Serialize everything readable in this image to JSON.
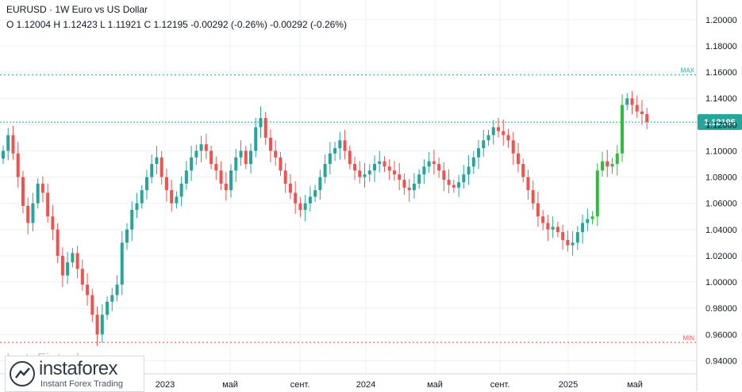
{
  "header": {
    "title": "EURUSD · 1W Euro vs US Dollar",
    "ohlc": "O 1.12004 H 1.12423 L 1.11921 C 1.12195 -0.00292 (-0.26%) -0.00292 (-0.26%)"
  },
  "watermark": "InstaFintech",
  "logo": {
    "name": "instaforex",
    "sub": "Instant Forex Trading"
  },
  "colors": {
    "up": "#26a69a",
    "down": "#ef5350",
    "upBright": "#2ebd3c",
    "maxLine": "#26a69a",
    "minLine": "#ef5350",
    "priceLine": "#26a69a",
    "grid": "#eef0f3"
  },
  "chart_data": {
    "type": "candlestick",
    "symbol": "EURUSD",
    "timeframe": "1W",
    "ylim": [
      0.93,
      1.215
    ],
    "yticks": [
      "0.94000",
      "0.96000",
      "0.98000",
      "1.00000",
      "1.02000",
      "1.04000",
      "1.06000",
      "1.08000",
      "1.10000",
      "1.12000",
      "1.14000",
      "1.16000",
      "1.18000",
      "1.20000"
    ],
    "xticks": [
      "2023",
      "май",
      "сент.",
      "2024",
      "май",
      "сент.",
      "2025",
      "май"
    ],
    "last_price": "1.12195",
    "max_label": "MAX",
    "max_value": 1.158,
    "min_label": "MIN",
    "min_value": 0.954,
    "closes": [
      1.1,
      1.112,
      1.098,
      1.08,
      1.058,
      1.045,
      1.06,
      1.075,
      1.068,
      1.05,
      1.04,
      1.02,
      1.005,
      1.015,
      1.022,
      1.01,
      0.998,
      0.99,
      0.975,
      0.96,
      0.975,
      0.985,
      0.99,
      0.998,
      1.03,
      1.04,
      1.055,
      1.06,
      1.07,
      1.08,
      1.09,
      1.095,
      1.08,
      1.07,
      1.06,
      1.065,
      1.075,
      1.085,
      1.095,
      1.1,
      1.105,
      1.1,
      1.09,
      1.085,
      1.075,
      1.07,
      1.085,
      1.095,
      1.1,
      1.09,
      1.1,
      1.118,
      1.125,
      1.11,
      1.1,
      1.095,
      1.085,
      1.075,
      1.068,
      1.06,
      1.055,
      1.06,
      1.065,
      1.07,
      1.08,
      1.09,
      1.098,
      1.102,
      1.108,
      1.1,
      1.09,
      1.085,
      1.08,
      1.082,
      1.085,
      1.09,
      1.092,
      1.088,
      1.085,
      1.082,
      1.078,
      1.072,
      1.07,
      1.075,
      1.082,
      1.088,
      1.092,
      1.09,
      1.085,
      1.078,
      1.074,
      1.072,
      1.076,
      1.082,
      1.088,
      1.095,
      1.102,
      1.108,
      1.112,
      1.118,
      1.115,
      1.112,
      1.108,
      1.098,
      1.09,
      1.08,
      1.07,
      1.06,
      1.05,
      1.045,
      1.04,
      1.042,
      1.038,
      1.032,
      1.028,
      1.03,
      1.038,
      1.045,
      1.048,
      1.05,
      1.085,
      1.092,
      1.088,
      1.09,
      1.098,
      1.135,
      1.14,
      1.135,
      1.13,
      1.128,
      1.122
    ]
  }
}
